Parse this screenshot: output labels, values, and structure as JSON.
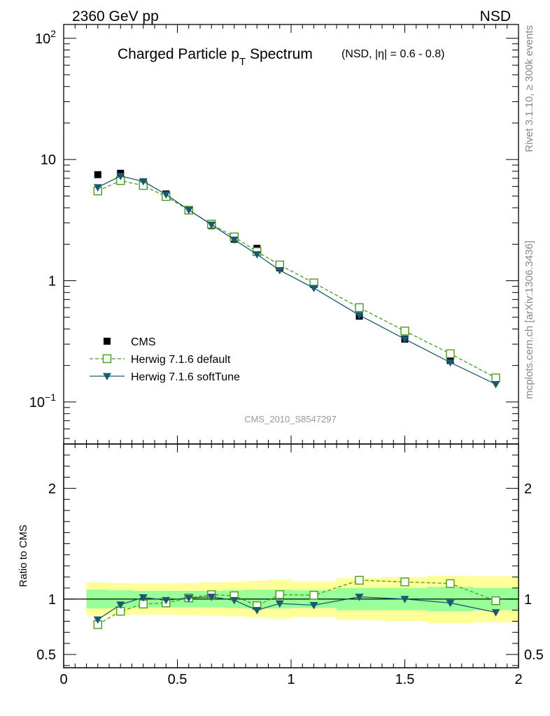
{
  "header": {
    "left": "2360 GeV pp",
    "right": "NSD"
  },
  "title": {
    "main": "Charged Particle p",
    "sub": "T",
    "main2": " Spectrum",
    "note": "(NSD, |η| = 0.6 - 0.8)"
  },
  "side_labels": {
    "rivet": "Rivet 3.1.10, ≥ 300k events",
    "mcplots": "mcplots.cern.ch [arXiv:1306.3436]"
  },
  "analysis_id": "CMS_2010_S8547297",
  "colors": {
    "cms": "#000000",
    "default": "#4a9a1a",
    "softtune": "#1a5a70",
    "band_inner": "#99ff99",
    "band_outer": "#ffff99"
  },
  "chart_data": [
    {
      "type": "scatter",
      "scale": "log",
      "xlim": [
        0,
        2
      ],
      "ylim": [
        0.045,
        130
      ],
      "y_ticks": [
        {
          "value": 0.1,
          "label": "10",
          "exp": "−1"
        },
        {
          "value": 1,
          "label": "1",
          "exp": ""
        },
        {
          "value": 10,
          "label": "10",
          "exp": ""
        },
        {
          "value": 100,
          "label": "10",
          "exp": "2"
        }
      ],
      "legend": {
        "placement": "bottom-left",
        "entries": [
          {
            "key": "cms",
            "label": "CMS"
          },
          {
            "key": "default",
            "label": "Herwig 7.1.6 default"
          },
          {
            "key": "softtune",
            "label": "Herwig 7.1.6 softTune"
          }
        ]
      },
      "series": [
        {
          "name": "CMS",
          "key": "cms",
          "x": [
            0.15,
            0.25,
            0.35,
            0.45,
            0.55,
            0.65,
            0.75,
            0.85,
            0.95,
            1.1,
            1.3,
            1.5,
            1.7,
            1.9
          ],
          "y": [
            7.5,
            7.7,
            6.5,
            5.2,
            3.8,
            2.85,
            2.2,
            1.85,
            1.28,
            0.93,
            0.51,
            0.33,
            0.22,
            0.16
          ]
        },
        {
          "name": "Herwig 7.1.6 default",
          "key": "default",
          "x": [
            0.15,
            0.25,
            0.35,
            0.45,
            0.55,
            0.65,
            0.75,
            0.85,
            0.95,
            1.1,
            1.3,
            1.5,
            1.7,
            1.9
          ],
          "y": [
            5.5,
            6.7,
            6.1,
            4.95,
            3.82,
            2.93,
            2.3,
            1.74,
            1.35,
            0.96,
            0.6,
            0.385,
            0.25,
            0.158
          ]
        },
        {
          "name": "Herwig 7.1.6 softTune",
          "key": "softtune",
          "x": [
            0.15,
            0.25,
            0.35,
            0.45,
            0.55,
            0.65,
            0.75,
            0.85,
            0.95,
            1.1,
            1.3,
            1.5,
            1.7,
            1.9
          ],
          "y": [
            5.9,
            7.3,
            6.6,
            5.15,
            3.84,
            2.9,
            2.18,
            1.65,
            1.22,
            0.87,
            0.52,
            0.33,
            0.212,
            0.14
          ]
        }
      ]
    },
    {
      "type": "line",
      "ylabel": "Ratio to CMS",
      "xlim": [
        0,
        2
      ],
      "ylim": [
        0.38,
        2.4
      ],
      "x_ticks": [
        0,
        0.5,
        1,
        1.5,
        2
      ],
      "x_tick_labels": [
        "0",
        "0.5",
        "1",
        "1.5",
        "2"
      ],
      "y_ticks": [
        0.5,
        1,
        2
      ],
      "y_tick_labels": [
        "0.5",
        "1",
        "2"
      ],
      "reference": 1,
      "bands": {
        "edges": [
          0.1,
          0.2,
          0.3,
          0.4,
          0.5,
          0.6,
          0.7,
          0.8,
          0.9,
          1.0,
          1.2,
          1.4,
          1.6,
          1.8,
          2.0
        ],
        "inner": [
          [
            0.915,
            1.085
          ],
          [
            0.92,
            1.08
          ],
          [
            0.925,
            1.075
          ],
          [
            0.925,
            1.075
          ],
          [
            0.925,
            1.075
          ],
          [
            0.925,
            1.075
          ],
          [
            0.92,
            1.08
          ],
          [
            0.915,
            1.085
          ],
          [
            0.915,
            1.085
          ],
          [
            0.92,
            1.08
          ],
          [
            0.9,
            1.1
          ],
          [
            0.9,
            1.1
          ],
          [
            0.89,
            1.11
          ],
          [
            0.9,
            1.1
          ]
        ],
        "outer": [
          [
            0.85,
            1.15
          ],
          [
            0.855,
            1.145
          ],
          [
            0.86,
            1.14
          ],
          [
            0.86,
            1.14
          ],
          [
            0.855,
            1.145
          ],
          [
            0.85,
            1.15
          ],
          [
            0.845,
            1.155
          ],
          [
            0.835,
            1.165
          ],
          [
            0.825,
            1.175
          ],
          [
            0.84,
            1.16
          ],
          [
            0.81,
            1.19
          ],
          [
            0.8,
            1.2
          ],
          [
            0.78,
            1.21
          ],
          [
            0.79,
            1.205
          ]
        ]
      },
      "series": [
        {
          "name": "Herwig 7.1.6 default",
          "key": "default",
          "x": [
            0.15,
            0.25,
            0.35,
            0.45,
            0.55,
            0.65,
            0.75,
            0.85,
            0.95,
            1.1,
            1.3,
            1.5,
            1.7,
            1.9
          ],
          "y": [
            0.77,
            0.89,
            0.955,
            0.965,
            1.01,
            1.04,
            1.03,
            0.94,
            1.04,
            1.035,
            1.17,
            1.155,
            1.14,
            0.985
          ]
        },
        {
          "name": "Herwig 7.1.6 softTune",
          "key": "softtune",
          "x": [
            0.15,
            0.25,
            0.35,
            0.45,
            0.55,
            0.65,
            0.75,
            0.85,
            0.95,
            1.1,
            1.3,
            1.5,
            1.7,
            1.9
          ],
          "y": [
            0.815,
            0.95,
            1.015,
            0.99,
            1.01,
            1.02,
            0.99,
            0.9,
            0.96,
            0.945,
            1.02,
            1.0,
            0.965,
            0.88
          ]
        }
      ]
    }
  ]
}
